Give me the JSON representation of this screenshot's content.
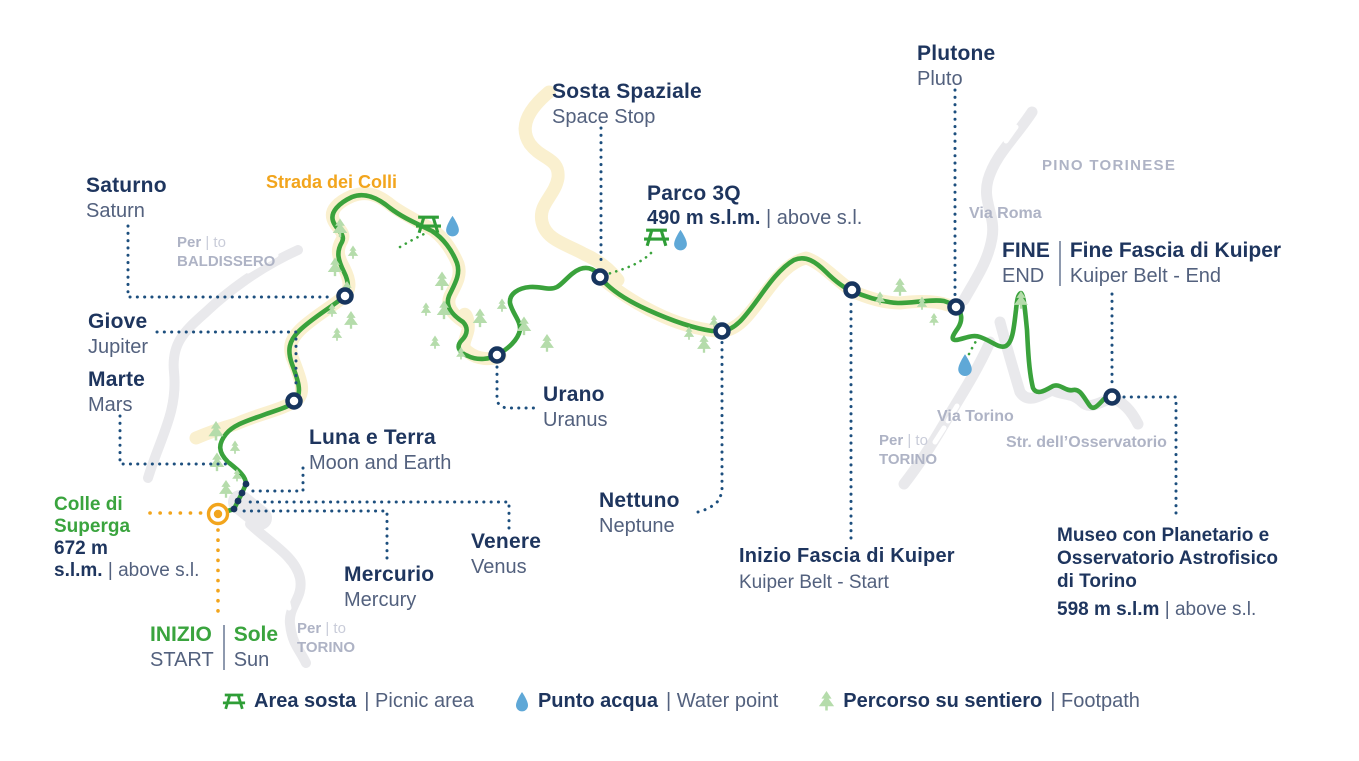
{
  "labels": {
    "saturno": {
      "it": "Saturno",
      "en": "Saturn"
    },
    "giove": {
      "it": "Giove",
      "en": "Jupiter"
    },
    "marte": {
      "it": "Marte",
      "en": "Mars"
    },
    "luna_e_terra": {
      "it": "Luna e Terra",
      "en": "Moon and Earth"
    },
    "mercurio": {
      "it": "Mercurio",
      "en": "Mercury"
    },
    "venere": {
      "it": "Venere",
      "en": "Venus"
    },
    "urano": {
      "it": "Urano",
      "en": "Uranus"
    },
    "nettuno": {
      "it": "Nettuno",
      "en": "Neptune"
    },
    "plutone": {
      "it": "Plutone",
      "en": "Pluto"
    },
    "sosta_spaziale": {
      "it": "Sosta Spaziale",
      "en": "Space Stop"
    },
    "parco_3q": {
      "name": "Parco 3Q",
      "elevation": "490 m s.l.m.",
      "elevation_en": "| above s.l."
    },
    "colle_di_superga": {
      "line1": "Colle di",
      "line2": "Superga",
      "elevation": "672 m",
      "elevation2": "s.l.m.",
      "elevation_en": "| above s.l."
    },
    "inizio_sole": {
      "it1": "INIZIO",
      "it2": "Sole",
      "en1": "START",
      "en2": "Sun"
    },
    "fine_kuiper": {
      "it1": "FINE",
      "it2": "Fine Fascia di Kuiper",
      "en1": "END",
      "en2": "Kuiper Belt - End"
    },
    "inizio_fascia_kuiper": {
      "it": "Inizio Fascia di Kuiper",
      "en": "Kuiper Belt - Start"
    },
    "museo": {
      "line1": "Museo con Planetario e",
      "line2": "Osservatorio Astrofisico",
      "line3": "di Torino",
      "elevation": "598 m s.l.m",
      "elevation_en": "| above s.l."
    }
  },
  "roads": {
    "strada_dei_colli": "Strada dei Colli",
    "per": "Per",
    "to": "| to",
    "baldissero": "BALDISSERO",
    "torino": "TORINO",
    "pino_torinese": "PINO TORINESE",
    "via_roma": "Via Roma",
    "via_torino": "Via Torino",
    "str_osservatorio": "Str. dell’Osservatorio"
  },
  "legend": {
    "items": [
      {
        "icon": "picnic-table-icon",
        "it": "Area sosta",
        "en": "| Picnic area"
      },
      {
        "icon": "water-drop-icon",
        "it": "Punto acqua",
        "en": "| Water point"
      },
      {
        "icon": "tree-icon",
        "it": "Percorso su sentiero",
        "en": "| Footpath"
      }
    ]
  },
  "colors": {
    "navy": "#1e355e",
    "slate": "#53617e",
    "road_label_gray": "#aeb3c5",
    "orange": "#f2a51d",
    "trail_green": "#3aa23c",
    "tree_green": "#b5dcab",
    "picnic_green": "#2f9e37",
    "water_blue": "#5fa8d7",
    "road_cream": "#faf0cf",
    "road_gray": "#e9e9ec",
    "leader_blue": "#1d4f7e"
  }
}
